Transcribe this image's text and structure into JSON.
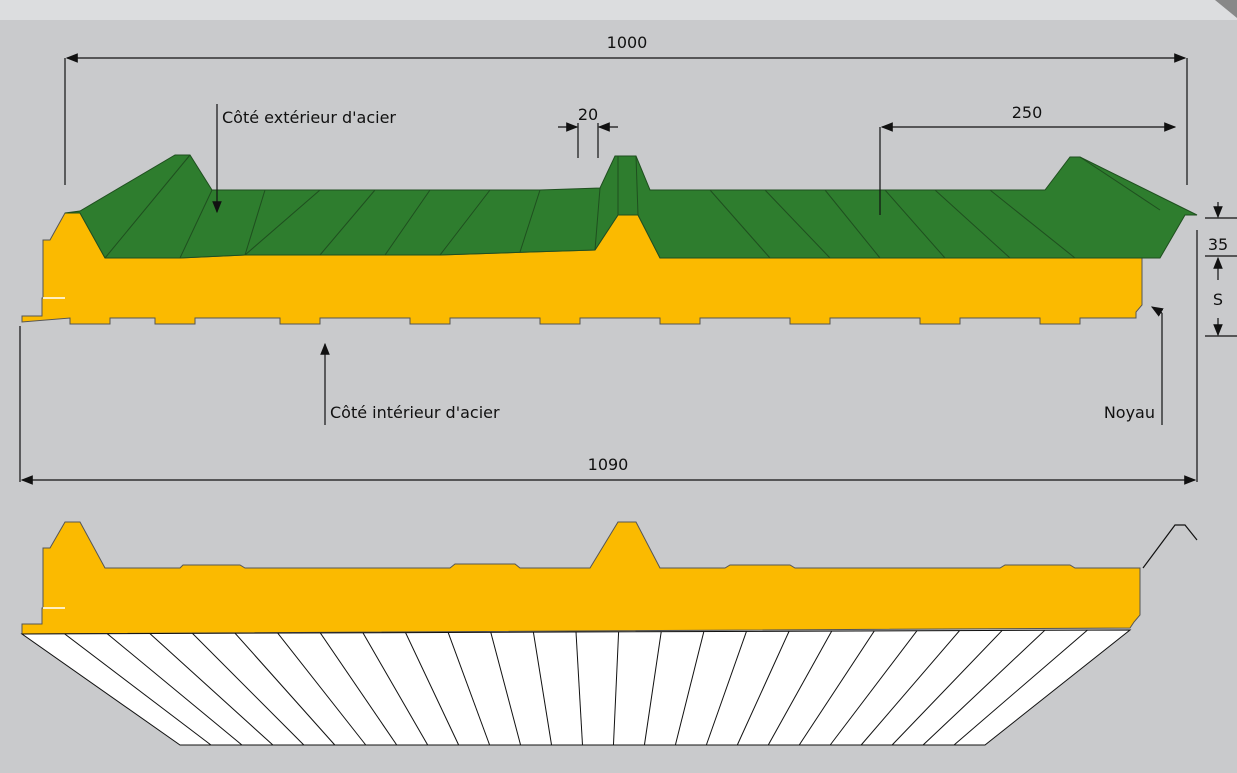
{
  "dimensions": {
    "overall_top": "1000",
    "rib_width": "20",
    "rib_spacing": "250",
    "rib_height": "35",
    "thickness": "S",
    "overall_bottom": "1090"
  },
  "labels": {
    "outer_steel": "Côté extérieur d'acier",
    "inner_steel": "Côté intérieur d'acier",
    "core": "Noyau"
  }
}
